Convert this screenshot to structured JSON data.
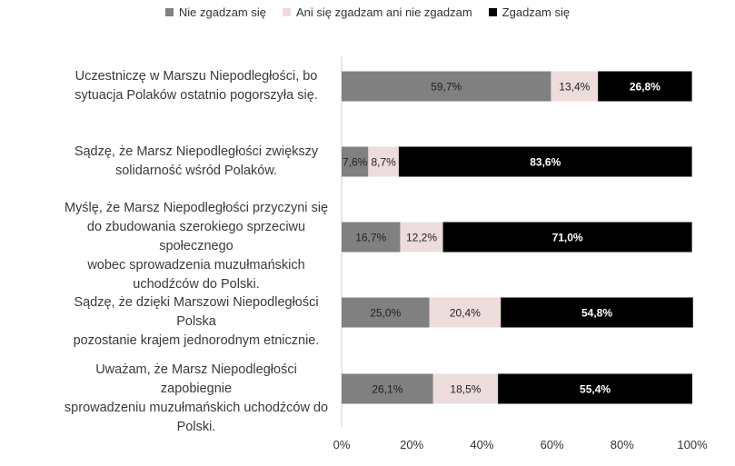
{
  "chart_data": {
    "type": "bar",
    "orientation": "horizontal",
    "stacked": true,
    "normalized": true,
    "categories": [
      "Uczestniczę w Marszu Niepodległości, bo sytuacja Polaków ostatnio pogorszyła się.",
      "Sądzę, że Marsz Niepodległości zwiększy solidarność wśród Polaków.",
      "Myślę, że Marsz Niepodległości przyczyni się do zbudowania szerokiego sprzeciwu społecznego wobec sprowadzenia muzułmańskich uchodźców do Polski.",
      "Sądzę, że dzięki Marszowi Niepodległości Polska pozostanie krajem jednorodnym etnicznie.",
      "Uważam, że Marsz Niepodległości zapobiegnie sprowadzeniu muzułmańskich uchodźców do Polski."
    ],
    "category_lines": [
      [
        "Uczestniczę w Marszu Niepodległości, bo",
        "sytuacja Polaków ostatnio pogorszyła się."
      ],
      [
        "Sądzę, że Marsz Niepodległości zwiększy",
        "solidarność wśród Polaków."
      ],
      [
        "Myślę, że Marsz Niepodległości przyczyni się",
        "do zbudowania szerokiego sprzeciwu społecznego",
        "wobec sprowadzenia muzułmańskich",
        "uchodźców do Polski."
      ],
      [
        "Sądzę, że dzięki Marszowi Niepodległości Polska",
        "pozostanie krajem jednorodnym etnicznie."
      ],
      [
        "Uważam, że Marsz Niepodległości zapobiegnie",
        "sprowadzeniu muzułmańskich uchodźców do",
        "Polski."
      ]
    ],
    "series": [
      {
        "name": "Nie zgadzam się",
        "color": "#808080",
        "label_color": "#222222",
        "bold": false,
        "values": [
          59.7,
          7.6,
          16.7,
          25.0,
          26.1
        ],
        "labels": [
          "59,7%",
          "7,6%",
          "16,7%",
          "25,0%",
          "26,1%"
        ]
      },
      {
        "name": "Ani się zgadzam ani nie zgadzam",
        "color": "#eddcdc",
        "label_color": "#222222",
        "bold": false,
        "values": [
          13.4,
          8.7,
          12.2,
          20.4,
          18.5
        ],
        "labels": [
          "13,4%",
          "8,7%",
          "12,2%",
          "20,4%",
          "18,5%"
        ]
      },
      {
        "name": "Zgadzam się",
        "color": "#000000",
        "label_color": "#ffffff",
        "bold": true,
        "values": [
          26.8,
          83.6,
          71.0,
          54.8,
          55.4
        ],
        "labels": [
          "26,8%",
          "83,6%",
          "71,0%",
          "54,8%",
          "55,4%"
        ]
      }
    ],
    "x_ticks": [
      "0%",
      "20%",
      "40%",
      "60%",
      "80%",
      "100%"
    ],
    "xlim": [
      0,
      100
    ],
    "grid": false,
    "legend_position": "top"
  }
}
